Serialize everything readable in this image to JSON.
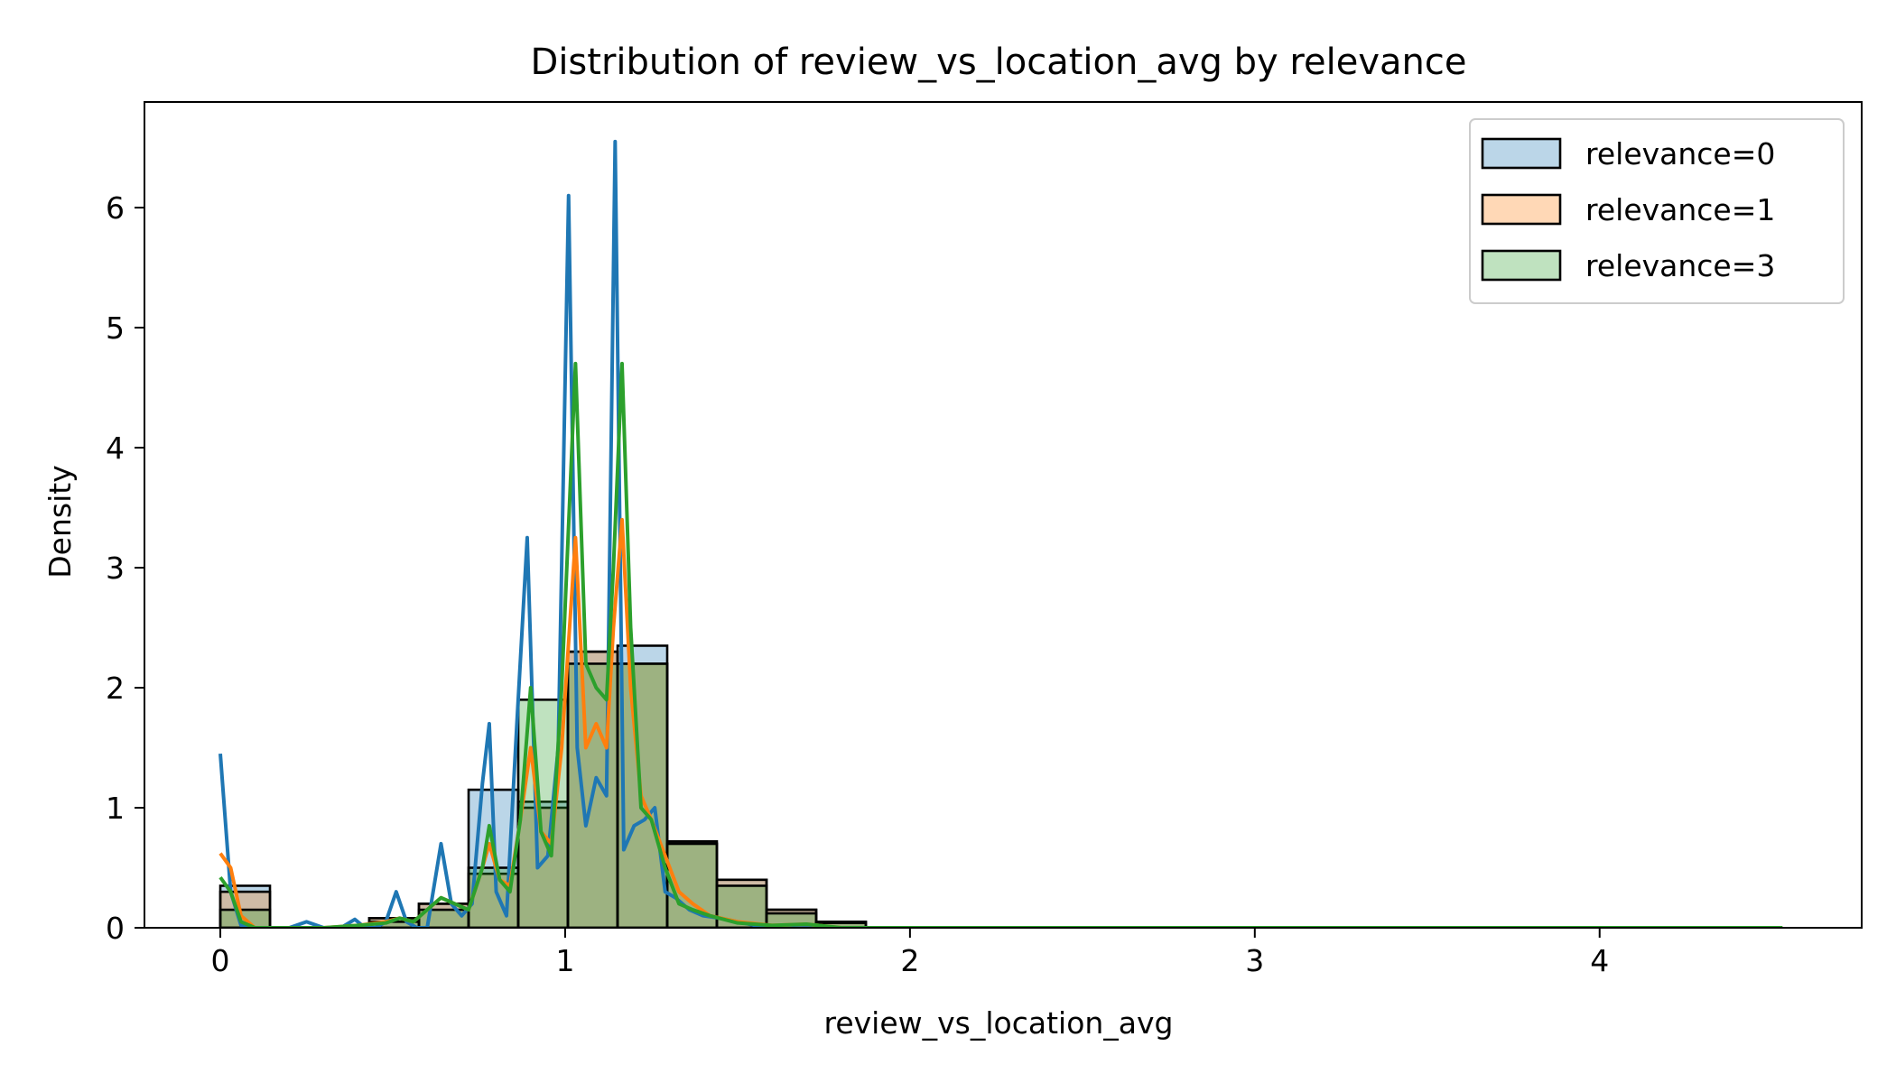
{
  "chart_data": {
    "type": "bar",
    "title": "Distribution of review_vs_location_avg by relevance",
    "xlabel": "review_vs_location_avg",
    "ylabel": "Density",
    "xlim": [
      -0.22,
      4.76
    ],
    "ylim": [
      0,
      6.88
    ],
    "x_ticks": [
      0,
      1,
      2,
      3,
      4
    ],
    "y_ticks": [
      0,
      1,
      2,
      3,
      4,
      5,
      6
    ],
    "grid": false,
    "legend_position": "top-right",
    "bin_width": 0.144,
    "histogram_bins": [
      0,
      0.144,
      0.288,
      0.432,
      0.576,
      0.72,
      0.864,
      1.008,
      1.152,
      1.296,
      1.44,
      1.584,
      1.728
    ],
    "series": [
      {
        "name": "relevance=0",
        "fill_color": "#1f77b4",
        "line_color": "#1f77b4",
        "hist_values": [
          0.35,
          0,
          0,
          0.08,
          0.2,
          1.15,
          1.05,
          2.3,
          2.35,
          0.72,
          0.4,
          0.15,
          0.05
        ],
        "kde_x": [
          0,
          0.03,
          0.06,
          0.1,
          0.15,
          0.2,
          0.25,
          0.3,
          0.35,
          0.39,
          0.42,
          0.45,
          0.48,
          0.51,
          0.54,
          0.57,
          0.6,
          0.64,
          0.67,
          0.7,
          0.73,
          0.76,
          0.78,
          0.8,
          0.83,
          0.86,
          0.89,
          0.92,
          0.95,
          0.98,
          1.01,
          1.035,
          1.06,
          1.09,
          1.12,
          1.145,
          1.17,
          1.2,
          1.23,
          1.26,
          1.29,
          1.32,
          1.36,
          1.4,
          1.45,
          1.5,
          1.55,
          1.6,
          1.65,
          1.7,
          1.8,
          1.9,
          2.0,
          2.5,
          3.0,
          3.5,
          4.0,
          4.53
        ],
        "kde_y": [
          1.45,
          0.3,
          0.02,
          0.0,
          0.0,
          0.0,
          0.05,
          0.0,
          0.0,
          0.07,
          0.0,
          0.0,
          0.05,
          0.3,
          0.05,
          0.0,
          0.0,
          0.7,
          0.2,
          0.1,
          0.2,
          1.2,
          1.7,
          0.3,
          0.1,
          1.7,
          3.25,
          0.5,
          0.6,
          1.5,
          6.1,
          1.5,
          0.85,
          1.25,
          1.1,
          6.55,
          0.65,
          0.85,
          0.9,
          1.0,
          0.3,
          0.25,
          0.15,
          0.1,
          0.08,
          0.05,
          0.02,
          0.0,
          0.02,
          0.0,
          0.0,
          0.0,
          0.0,
          0.0,
          0.0,
          0.0,
          0.0,
          0.0
        ]
      },
      {
        "name": "relevance=1",
        "fill_color": "#ff7f0e",
        "line_color": "#ff7f0e",
        "hist_values": [
          0.3,
          0,
          0,
          0.08,
          0.2,
          0.45,
          1.0,
          2.3,
          2.2,
          0.7,
          0.4,
          0.15,
          0.05
        ],
        "kde_x": [
          0,
          0.03,
          0.06,
          0.1,
          0.2,
          0.3,
          0.4,
          0.48,
          0.52,
          0.56,
          0.6,
          0.64,
          0.68,
          0.72,
          0.76,
          0.78,
          0.81,
          0.84,
          0.87,
          0.9,
          0.93,
          0.96,
          0.99,
          1.03,
          1.06,
          1.09,
          1.12,
          1.14,
          1.165,
          1.19,
          1.22,
          1.25,
          1.29,
          1.33,
          1.37,
          1.42,
          1.5,
          1.6,
          1.7,
          1.8,
          2.0,
          3.0,
          4.53
        ],
        "kde_y": [
          0.62,
          0.5,
          0.1,
          0.0,
          0.0,
          0.0,
          0.02,
          0.05,
          0.08,
          0.05,
          0.15,
          0.25,
          0.2,
          0.15,
          0.5,
          0.7,
          0.4,
          0.35,
          0.9,
          1.5,
          0.8,
          0.7,
          1.5,
          3.25,
          1.5,
          1.7,
          1.5,
          2.5,
          3.4,
          2.0,
          1.1,
          0.9,
          0.6,
          0.3,
          0.2,
          0.1,
          0.05,
          0.02,
          0.03,
          0.0,
          0.0,
          0.0,
          0.0
        ]
      },
      {
        "name": "relevance=3",
        "fill_color": "#2ca02c",
        "line_color": "#2ca02c",
        "hist_values": [
          0.15,
          0,
          0,
          0.05,
          0.15,
          0.5,
          1.9,
          2.2,
          2.2,
          0.7,
          0.35,
          0.12,
          0.04
        ],
        "kde_x": [
          0,
          0.03,
          0.06,
          0.1,
          0.2,
          0.3,
          0.4,
          0.48,
          0.52,
          0.56,
          0.6,
          0.64,
          0.68,
          0.72,
          0.76,
          0.78,
          0.81,
          0.84,
          0.87,
          0.9,
          0.93,
          0.96,
          0.99,
          1.03,
          1.06,
          1.09,
          1.12,
          1.14,
          1.165,
          1.19,
          1.22,
          1.25,
          1.29,
          1.33,
          1.37,
          1.42,
          1.5,
          1.6,
          1.7,
          1.8,
          2.0,
          3.0,
          4.53
        ],
        "kde_y": [
          0.42,
          0.3,
          0.05,
          0.0,
          0.0,
          0.0,
          0.02,
          0.04,
          0.08,
          0.05,
          0.15,
          0.25,
          0.2,
          0.15,
          0.5,
          0.85,
          0.4,
          0.3,
          0.9,
          2.0,
          0.8,
          0.6,
          2.0,
          4.7,
          2.2,
          2.0,
          1.9,
          3.0,
          4.7,
          2.5,
          1.0,
          0.9,
          0.5,
          0.2,
          0.15,
          0.1,
          0.04,
          0.02,
          0.03,
          0.0,
          0.0,
          0.0,
          0.0
        ]
      }
    ]
  }
}
